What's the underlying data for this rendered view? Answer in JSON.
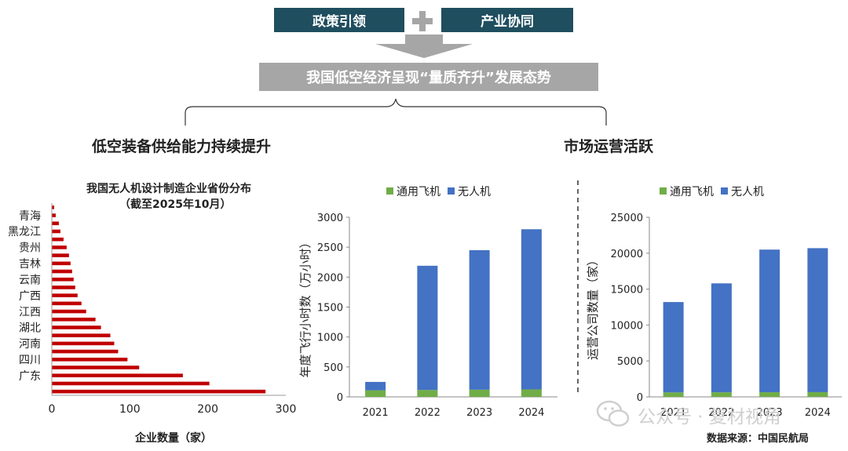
{
  "header": {
    "left_box": "政策引领",
    "right_box": "产业协同",
    "banner": "我国低空经济呈现“量质齐升”发展态势",
    "left_section": "低空装备供给能力持续提升",
    "right_section": "市场运营活跃"
  },
  "source": "数据来源：中国民航局",
  "watermark": "公众号 · 复材视角",
  "colors": {
    "teal": "#1f4e5f",
    "grey": "#a6a6a6",
    "bar_red": "#c00000",
    "blue": "#4472c4",
    "green": "#70ad47"
  },
  "chart_data": [
    {
      "type": "bar",
      "orientation": "horizontal",
      "title": "我国无人机设计制造企业省份分布",
      "subtitle": "（截至2025年10月）",
      "xlabel": "企业数量（家）",
      "xlim": [
        0,
        300
      ],
      "xticks": [
        0,
        100,
        200,
        300
      ],
      "category_labels": [
        "青海",
        "黑龙江",
        "贵州",
        "吉林",
        "云南",
        "广西",
        "江西",
        "湖北",
        "河南",
        "四川",
        "广东"
      ],
      "values": [
        3,
        5,
        9,
        11,
        15,
        19,
        22,
        24,
        26,
        28,
        30,
        33,
        38,
        44,
        56,
        63,
        75,
        80,
        85,
        97,
        112,
        168,
        202,
        274
      ]
    },
    {
      "type": "bar",
      "stacked": true,
      "categories": [
        "2021",
        "2022",
        "2023",
        "2024"
      ],
      "series": [
        {
          "name": "通用飞机",
          "values": [
            110,
            115,
            120,
            125
          ]
        },
        {
          "name": "无人机",
          "values": [
            140,
            2075,
            2330,
            2675
          ]
        }
      ],
      "ylabel": "年度飞行小时数（万小时）",
      "ylim": [
        0,
        3000
      ],
      "yticks": [
        0,
        500,
        1000,
        1500,
        2000,
        2500,
        3000
      ]
    },
    {
      "type": "bar",
      "stacked": true,
      "categories": [
        "2021",
        "2022",
        "2023",
        "2024"
      ],
      "series": [
        {
          "name": "通用飞机",
          "values": [
            620,
            640,
            650,
            660
          ]
        },
        {
          "name": "无人机",
          "values": [
            12580,
            15160,
            19850,
            20040
          ]
        }
      ],
      "ylabel": "运营公司数量（家）",
      "ylim": [
        0,
        25000
      ],
      "yticks": [
        0,
        5000,
        10000,
        15000,
        20000,
        25000
      ]
    }
  ]
}
